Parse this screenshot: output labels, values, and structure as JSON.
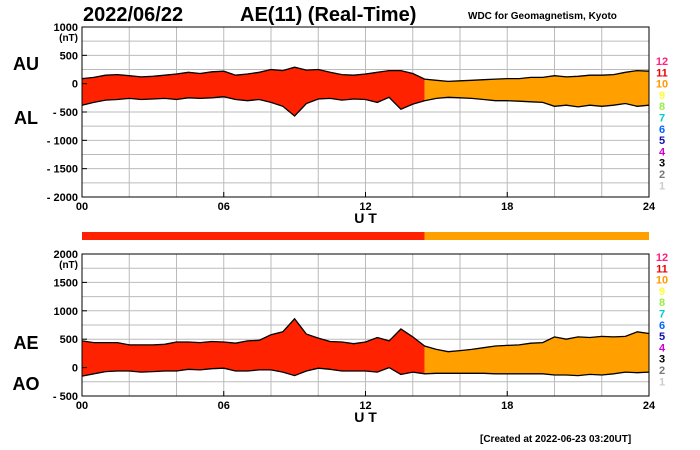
{
  "header": {
    "date": "2022/06/22",
    "title": "AE(11) (Real-Time)",
    "source": "WDC for Geomagnetism, Kyoto"
  },
  "footer": {
    "created": "[Created at 2022-06-23 03:20UT]"
  },
  "colors": {
    "final_segment": "#ff2200",
    "realtime_segment": "#ffa000",
    "outline": "#000000",
    "grid": "#bbbbbb"
  },
  "station_count_legend": [
    {
      "label": "12",
      "color": "#ff2080"
    },
    {
      "label": "11",
      "color": "#ee0000"
    },
    {
      "label": "10",
      "color": "#ff9900"
    },
    {
      "label": "9",
      "color": "#ffff33"
    },
    {
      "label": "8",
      "color": "#99ee44"
    },
    {
      "label": "7",
      "color": "#00cccc"
    },
    {
      "label": "6",
      "color": "#0066ff"
    },
    {
      "label": "5",
      "color": "#1111aa"
    },
    {
      "label": "4",
      "color": "#cc00cc"
    },
    {
      "label": "3",
      "color": "#000000"
    },
    {
      "label": "2",
      "color": "#777777"
    },
    {
      "label": "1",
      "color": "#cccccc"
    }
  ],
  "status_bar": {
    "split_hour": 14.5
  },
  "chart_data": [
    {
      "type": "area",
      "ylabel_unit": "(nT)",
      "xlabel": "U T",
      "xlim": [
        0,
        24
      ],
      "ylim": [
        -2000,
        1000
      ],
      "yticks": [
        1000,
        500,
        0,
        -500,
        -1000,
        -1500,
        -2000
      ],
      "ytick_labels": [
        "1000",
        "500",
        "0",
        "- 500",
        "- 1000",
        "- 1500",
        "- 2000"
      ],
      "xticks": [
        0,
        6,
        12,
        18,
        24
      ],
      "xtick_labels": [
        "00",
        "06",
        "12",
        "18",
        "24"
      ],
      "grid": true,
      "split_hour": 14.5,
      "series": [
        {
          "name": "AU",
          "x": [
            0,
            0.5,
            1,
            1.5,
            2,
            2.5,
            3,
            3.5,
            4,
            4.5,
            5,
            5.5,
            6,
            6.5,
            7,
            7.5,
            8,
            8.5,
            9,
            9.5,
            10,
            10.5,
            11,
            11.5,
            12,
            12.5,
            13,
            13.5,
            14,
            14.5,
            15,
            15.5,
            16,
            16.5,
            17,
            17.5,
            18,
            18.5,
            19,
            19.5,
            20,
            20.5,
            21,
            21.5,
            22,
            22.5,
            23,
            23.5,
            24
          ],
          "values": [
            90,
            110,
            150,
            160,
            140,
            120,
            130,
            150,
            170,
            200,
            180,
            210,
            220,
            150,
            170,
            200,
            250,
            230,
            290,
            240,
            250,
            200,
            160,
            150,
            170,
            200,
            230,
            230,
            180,
            80,
            60,
            40,
            50,
            60,
            70,
            80,
            90,
            90,
            110,
            110,
            140,
            120,
            130,
            150,
            150,
            160,
            200,
            230,
            220
          ]
        },
        {
          "name": "AL",
          "x": [
            0,
            0.5,
            1,
            1.5,
            2,
            2.5,
            3,
            3.5,
            4,
            4.5,
            5,
            5.5,
            6,
            6.5,
            7,
            7.5,
            8,
            8.5,
            9,
            9.5,
            10,
            10.5,
            11,
            11.5,
            12,
            12.5,
            13,
            13.5,
            14,
            14.5,
            15,
            15.5,
            16,
            16.5,
            17,
            17.5,
            18,
            18.5,
            19,
            19.5,
            20,
            20.5,
            21,
            21.5,
            22,
            22.5,
            23,
            23.5,
            24
          ],
          "values": [
            -380,
            -330,
            -290,
            -280,
            -260,
            -280,
            -270,
            -260,
            -280,
            -250,
            -260,
            -250,
            -230,
            -280,
            -300,
            -280,
            -330,
            -400,
            -570,
            -350,
            -270,
            -260,
            -290,
            -270,
            -280,
            -330,
            -240,
            -450,
            -360,
            -300,
            -260,
            -240,
            -250,
            -260,
            -280,
            -300,
            -300,
            -310,
            -320,
            -330,
            -400,
            -380,
            -410,
            -380,
            -400,
            -380,
            -350,
            -400,
            -380
          ]
        }
      ]
    },
    {
      "type": "area",
      "ylabel_unit": "(nT)",
      "xlabel": "U T",
      "xlim": [
        0,
        24
      ],
      "ylim": [
        -500,
        2000
      ],
      "yticks": [
        2000,
        1500,
        1000,
        500,
        0,
        -500
      ],
      "ytick_labels": [
        "2000",
        "1500",
        "1000",
        "500",
        "0",
        "- 500"
      ],
      "xticks": [
        0,
        6,
        12,
        18,
        24
      ],
      "xtick_labels": [
        "00",
        "06",
        "12",
        "18",
        "24"
      ],
      "grid": true,
      "split_hour": 14.5,
      "series": [
        {
          "name": "AE",
          "x": [
            0,
            0.5,
            1,
            1.5,
            2,
            2.5,
            3,
            3.5,
            4,
            4.5,
            5,
            5.5,
            6,
            6.5,
            7,
            7.5,
            8,
            8.5,
            9,
            9.5,
            10,
            10.5,
            11,
            11.5,
            12,
            12.5,
            13,
            13.5,
            14,
            14.5,
            15,
            15.5,
            16,
            16.5,
            17,
            17.5,
            18,
            18.5,
            19,
            19.5,
            20,
            20.5,
            21,
            21.5,
            22,
            22.5,
            23,
            23.5,
            24
          ],
          "values": [
            470,
            440,
            440,
            440,
            400,
            400,
            400,
            410,
            450,
            450,
            440,
            460,
            450,
            430,
            470,
            480,
            580,
            630,
            860,
            590,
            520,
            460,
            450,
            420,
            450,
            530,
            470,
            680,
            540,
            380,
            320,
            280,
            300,
            320,
            350,
            380,
            390,
            400,
            430,
            440,
            540,
            500,
            540,
            530,
            550,
            540,
            550,
            630,
            600
          ]
        },
        {
          "name": "AO",
          "x": [
            0,
            0.5,
            1,
            1.5,
            2,
            2.5,
            3,
            3.5,
            4,
            4.5,
            5,
            5.5,
            6,
            6.5,
            7,
            7.5,
            8,
            8.5,
            9,
            9.5,
            10,
            10.5,
            11,
            11.5,
            12,
            12.5,
            13,
            13.5,
            14,
            14.5,
            15,
            15.5,
            16,
            16.5,
            17,
            17.5,
            18,
            18.5,
            19,
            19.5,
            20,
            20.5,
            21,
            21.5,
            22,
            22.5,
            23,
            23.5,
            24
          ],
          "values": [
            -150,
            -110,
            -70,
            -60,
            -60,
            -80,
            -70,
            -60,
            -60,
            -30,
            -40,
            -20,
            -10,
            -60,
            -60,
            -40,
            -40,
            -80,
            -140,
            -60,
            -10,
            -30,
            -60,
            -60,
            -60,
            -80,
            0,
            -120,
            -80,
            -110,
            -100,
            -100,
            -100,
            -100,
            -100,
            -110,
            -110,
            -110,
            -110,
            -110,
            -130,
            -130,
            -140,
            -120,
            -130,
            -110,
            -80,
            -90,
            -80
          ]
        }
      ]
    }
  ]
}
